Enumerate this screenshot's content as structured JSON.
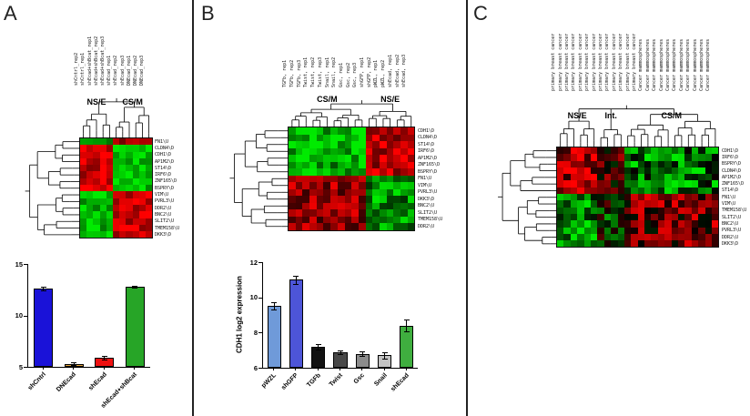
{
  "figure": {
    "panels": [
      {
        "letter": "A"
      },
      {
        "letter": "B"
      },
      {
        "letter": "C"
      }
    ]
  },
  "chart_data": [
    {
      "type": "heatmap",
      "panel": "A",
      "col_labels": [
        "shCntrl_rep2",
        "shCntrl_rep1",
        "shEcad+shBcat_rep1",
        "shEcad+shBcat_rep2",
        "shEcad+shBcat_rep3",
        "shEcad_rep1",
        "shEcad_rep2",
        "shEcad_rep3",
        "DNEcad_rep1",
        "DNEcad_rep2",
        "DNEcad_rep3"
      ],
      "row_labels": [
        "FN1\\U",
        "CLDN4\\D",
        "CDH1\\D",
        "AP1M2\\D",
        "ST14\\D",
        "IRF6\\D",
        "ZNF165\\D",
        "BSPRY\\D",
        "VIM\\U",
        "PVRL3\\U",
        "DDR2\\U",
        "BNC2\\U",
        "SLIT2\\U",
        "TMEM158\\U",
        "DKK3\\D"
      ],
      "col_groups": [
        {
          "label": "NS/E",
          "from": 0,
          "to": 4
        },
        {
          "label": "CS/M",
          "from": 5,
          "to": 10
        }
      ],
      "row_split": 8,
      "colors": {
        "high": "#ff0000",
        "mid": "#000000",
        "low": "#00e600"
      },
      "blocks": [
        {
          "rows": [
            0,
            0
          ],
          "cols": [
            0,
            4
          ],
          "value": -0.7
        },
        {
          "rows": [
            0,
            0
          ],
          "cols": [
            5,
            10
          ],
          "value": 0.7
        },
        {
          "rows": [
            1,
            7
          ],
          "cols": [
            0,
            4
          ],
          "value": 0.8
        },
        {
          "rows": [
            1,
            7
          ],
          "cols": [
            5,
            10
          ],
          "value": -0.8
        },
        {
          "rows": [
            8,
            14
          ],
          "cols": [
            0,
            4
          ],
          "value": -0.8
        },
        {
          "rows": [
            8,
            14
          ],
          "cols": [
            5,
            10
          ],
          "value": 0.8
        }
      ],
      "noise": 0.3,
      "seed": 11
    },
    {
      "type": "bar",
      "panel": "A",
      "ylabel": "",
      "ylim": [
        5,
        15
      ],
      "yticks": [
        5,
        10,
        15
      ],
      "categories": [
        "shCntrl",
        "DNEcad",
        "shEcad",
        "shEcad+shBcat"
      ],
      "values": [
        12.6,
        5.3,
        5.9,
        12.8
      ],
      "errors": [
        0.15,
        0.1,
        0.2,
        0.1
      ],
      "colors": [
        "#1a12d8",
        "#e2a23b",
        "#ee1111",
        "#27a527"
      ]
    },
    {
      "type": "heatmap",
      "panel": "B",
      "col_labels": [
        "TGFb, rep1",
        "TGFb, rep2",
        "TGFb, rep3",
        "Twist, rep1",
        "Twist, rep2",
        "Twist, rep3",
        "Snail, rep1",
        "Snail, rep2",
        "Gsc, rep1",
        "Gsc, rep2",
        "Gsc, rep3",
        "shGFP, rep1",
        "shGFP, rep2",
        "pWZL, rep1",
        "pWZL, rep2",
        "shEcad, rep1",
        "shEcad, rep2",
        "shEcad, rep3"
      ],
      "row_labels": [
        "CDH1\\D",
        "CLDN4\\D",
        "ST14\\D",
        "IRF6\\D",
        "AP1M2\\D",
        "ZNF165\\D",
        "BSPRY\\D",
        "FN1\\U",
        "VIM\\U",
        "PVRL3\\U",
        "DKK3\\D",
        "BNC2\\U",
        "SLIT2\\U",
        "TMEM158\\U",
        "DDR2\\U"
      ],
      "col_groups": [
        {
          "label": "CS/M",
          "from": 0,
          "to": 10
        },
        {
          "label": "NS/E",
          "from": 11,
          "to": 17
        }
      ],
      "row_split": 7,
      "colors": {
        "high": "#ff0000",
        "mid": "#000000",
        "low": "#00e600"
      },
      "blocks": [
        {
          "rows": [
            0,
            6
          ],
          "cols": [
            0,
            10
          ],
          "value": -0.75
        },
        {
          "rows": [
            0,
            6
          ],
          "cols": [
            11,
            17
          ],
          "value": 0.75
        },
        {
          "rows": [
            7,
            14
          ],
          "cols": [
            0,
            10
          ],
          "value": 0.6
        },
        {
          "rows": [
            7,
            14
          ],
          "cols": [
            11,
            17
          ],
          "value": -0.6
        }
      ],
      "noise": 0.4,
      "seed": 22
    },
    {
      "type": "bar",
      "panel": "B",
      "ylabel": "CDH1 log2 expression",
      "ylim": [
        6,
        12
      ],
      "yticks": [
        6,
        8,
        10,
        12
      ],
      "categories": [
        "pWZL",
        "shGFP",
        "TGFb",
        "Twist",
        "Gsc",
        "Snail",
        "shEcad"
      ],
      "values": [
        9.5,
        11.0,
        7.2,
        6.9,
        6.8,
        6.7,
        8.4
      ],
      "errors": [
        0.2,
        0.25,
        0.15,
        0.1,
        0.15,
        0.2,
        0.35
      ],
      "colors": [
        "#6f9ad9",
        "#4d55d8",
        "#121212",
        "#484848",
        "#8c8c8c",
        "#c2c2c2",
        "#3fae3f"
      ]
    },
    {
      "type": "heatmap",
      "panel": "C",
      "col_labels": [
        "primary breast cancer",
        "primary breast cancer",
        "primary breast cancer",
        "primary breast cancer",
        "primary breast cancer",
        "primary breast cancer",
        "primary breast cancer",
        "primary breast cancer",
        "primary breast cancer",
        "primary breast cancer",
        "primary breast cancer",
        "primary breast cancer",
        "primary breast cancer",
        "Cancer mammospheres",
        "Cancer mammospheres",
        "Cancer mammospheres",
        "Cancer mammospheres",
        "Cancer mammospheres",
        "Cancer mammospheres",
        "Cancer mammospheres",
        "Cancer mammospheres",
        "Cancer mammospheres",
        "Cancer mammospheres",
        "Cancer mammospheres"
      ],
      "row_labels": [
        "CDH1\\D",
        "IRF6\\D",
        "BSPRY\\D",
        "CLDN4\\D",
        "AP1M2\\D",
        "ZNF165\\D",
        "ST14\\D",
        "FN1\\U",
        "VIM\\U",
        "TMEM158\\U",
        "SLIT2\\U",
        "BNC2\\U",
        "PVRL3\\U",
        "DDR2\\U",
        "DKK3\\D"
      ],
      "col_groups": [
        {
          "label": "NS/E",
          "from": 0,
          "to": 5
        },
        {
          "label": "Int.",
          "from": 6,
          "to": 9
        },
        {
          "label": "CS/M",
          "from": 10,
          "to": 23
        }
      ],
      "row_split": 7,
      "colors": {
        "high": "#ff0000",
        "mid": "#000000",
        "low": "#00e600"
      },
      "blocks": [
        {
          "rows": [
            0,
            6
          ],
          "cols": [
            0,
            5
          ],
          "value": 0.7
        },
        {
          "rows": [
            7,
            14
          ],
          "cols": [
            0,
            5
          ],
          "value": -0.6
        },
        {
          "rows": [
            0,
            6
          ],
          "cols": [
            6,
            9
          ],
          "value": 0.15
        },
        {
          "rows": [
            7,
            14
          ],
          "cols": [
            6,
            9
          ],
          "value": -0.15
        },
        {
          "rows": [
            0,
            6
          ],
          "cols": [
            10,
            23
          ],
          "value": -0.5
        },
        {
          "rows": [
            7,
            14
          ],
          "cols": [
            10,
            23
          ],
          "value": 0.4
        }
      ],
      "noise": 0.55,
      "seed": 7
    }
  ]
}
